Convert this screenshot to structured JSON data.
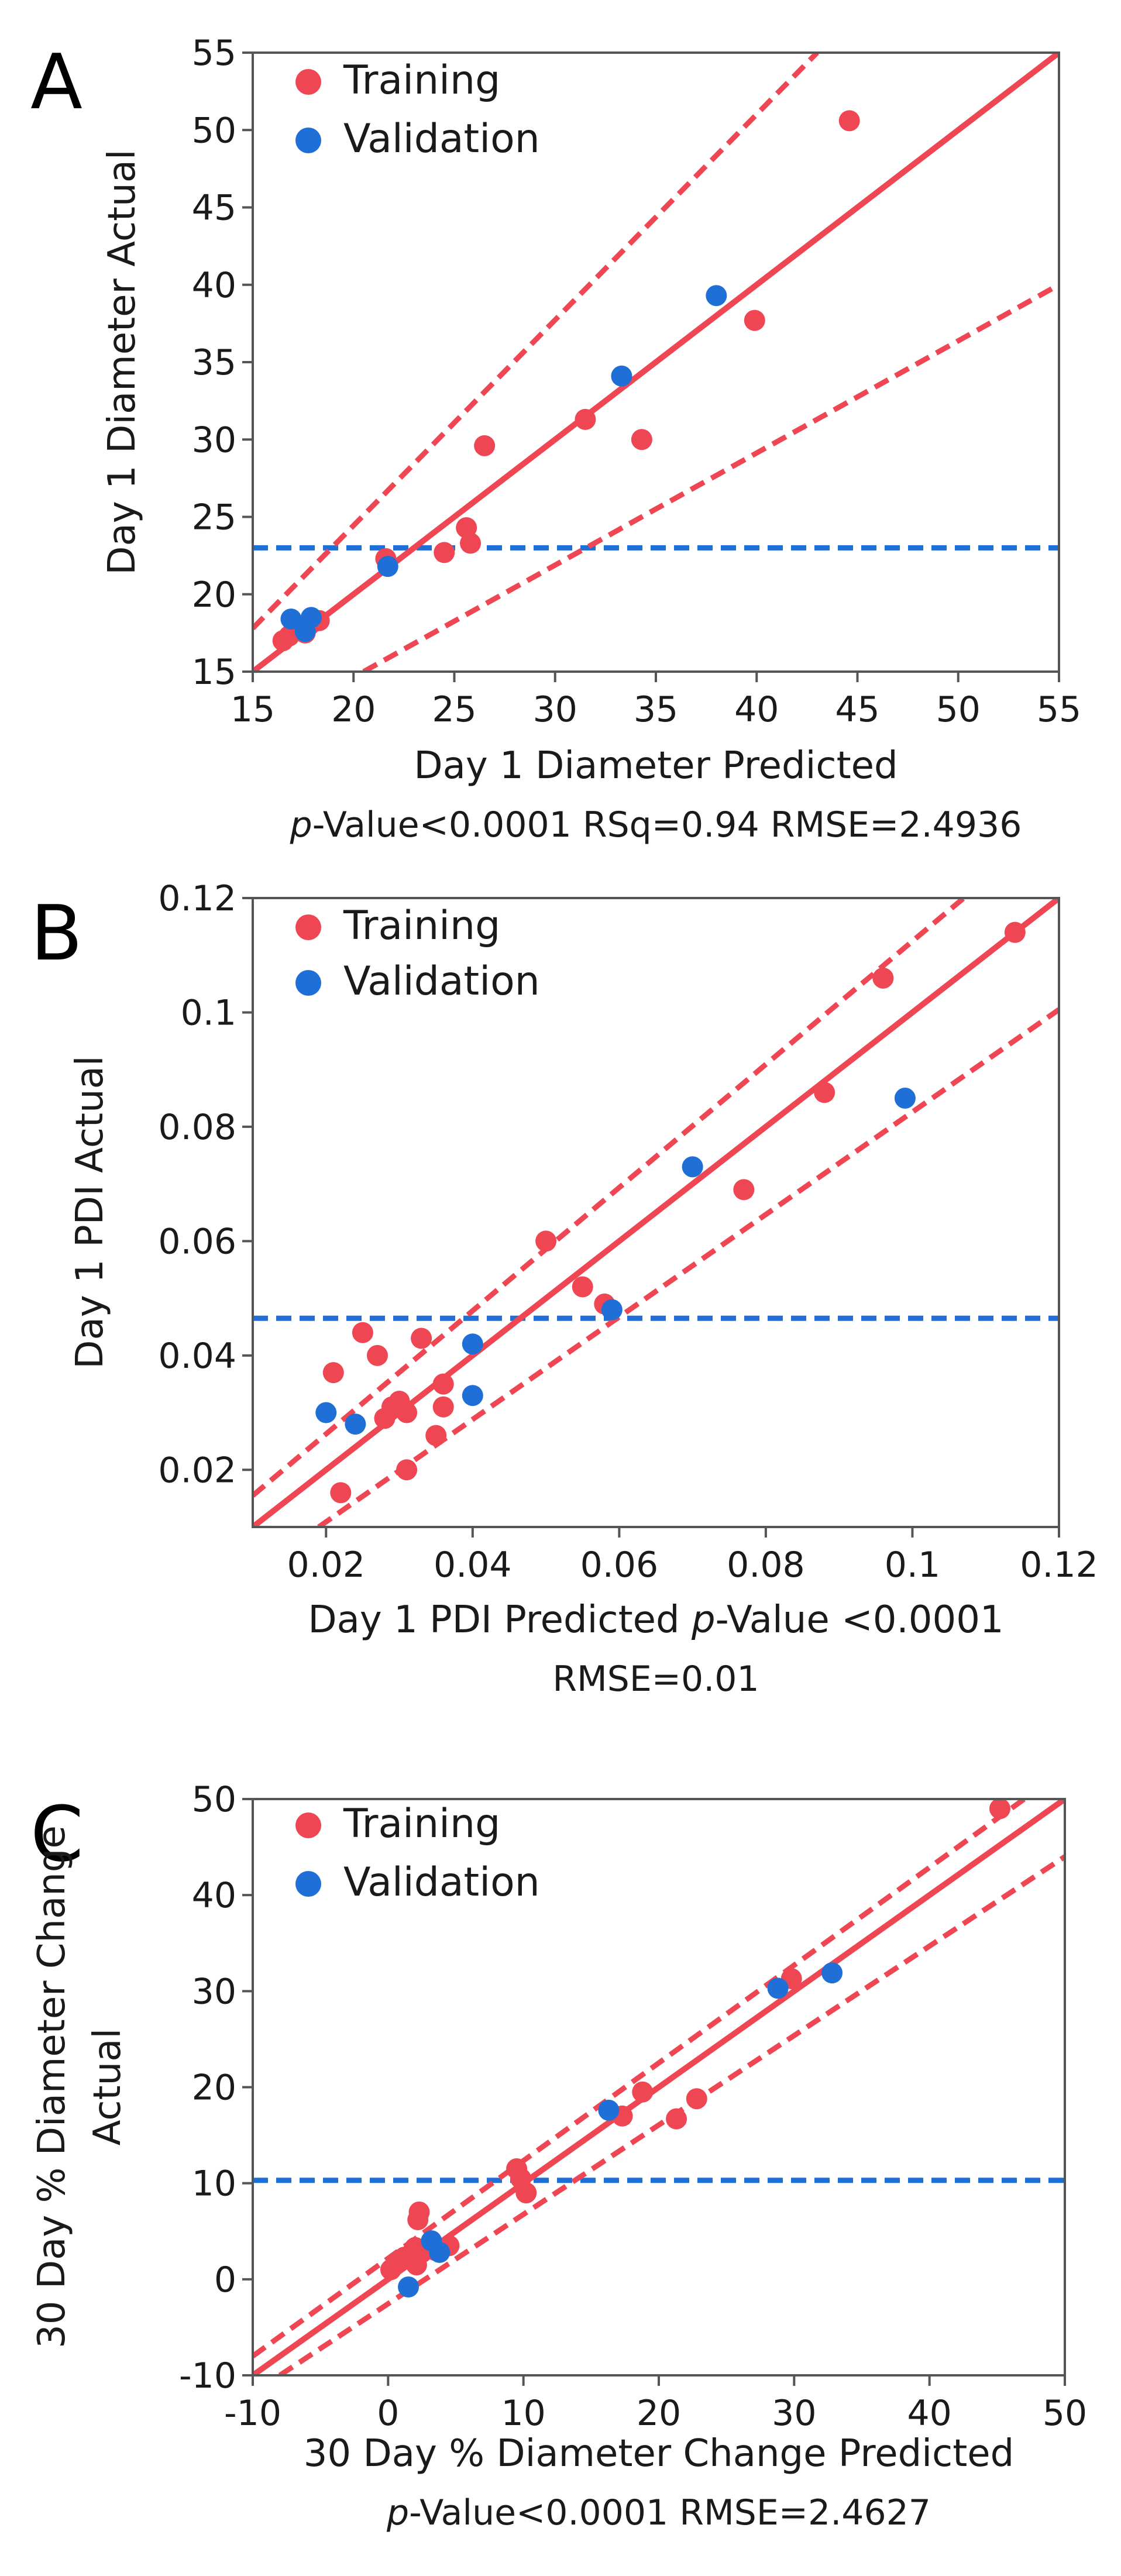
{
  "colors": {
    "training": "#ef4654",
    "validation": "#1f6fd6",
    "threshold": "#1f6fd6",
    "frame": "#555555"
  },
  "chart_data": [
    {
      "type": "scatter",
      "panel": "A",
      "xlabel": "Day 1 Diameter Predicted",
      "ylabel": "Day 1 Diameter Actual",
      "stats": {
        "p_symbol": "p",
        "rest": "-Value<0.0001 RSq=0.94 RMSE=2.4936"
      },
      "xlim": [
        15,
        55
      ],
      "ylim": [
        15,
        55
      ],
      "xticks": [
        15,
        20,
        25,
        30,
        35,
        40,
        45,
        50,
        55
      ],
      "yticks": [
        15,
        20,
        25,
        30,
        35,
        40,
        45,
        50,
        55
      ],
      "xtick_labels": [
        "15",
        "20",
        "25",
        "30",
        "35",
        "40",
        "45",
        "50",
        "55"
      ],
      "ytick_labels": [
        "15",
        "20",
        "25",
        "30",
        "35",
        "40",
        "45",
        "50",
        "55"
      ],
      "threshold_y": 23,
      "fit_line": [
        [
          15,
          15
        ],
        [
          55,
          55
        ]
      ],
      "ci_lines": [
        [
          [
            15,
            17.8
          ],
          [
            43,
            55
          ]
        ],
        [
          [
            20.5,
            15
          ],
          [
            55,
            40
          ]
        ]
      ],
      "legend": [
        "Training",
        "Validation"
      ],
      "series": [
        {
          "name": "Training",
          "points": [
            [
              16.5,
              17.0
            ],
            [
              16.8,
              17.3
            ],
            [
              17.0,
              17.6
            ],
            [
              17.3,
              17.8
            ],
            [
              17.6,
              17.5
            ],
            [
              17.8,
              18.0
            ],
            [
              18.0,
              18.2
            ],
            [
              18.3,
              18.3
            ],
            [
              21.6,
              22.3
            ],
            [
              24.5,
              22.7
            ],
            [
              25.6,
              24.3
            ],
            [
              25.8,
              23.3
            ],
            [
              26.5,
              29.6
            ],
            [
              31.5,
              31.3
            ],
            [
              34.3,
              30.0
            ],
            [
              39.9,
              37.7
            ],
            [
              44.6,
              50.6
            ]
          ]
        },
        {
          "name": "Validation",
          "points": [
            [
              16.9,
              18.4
            ],
            [
              17.6,
              17.6
            ],
            [
              17.9,
              18.5
            ],
            [
              21.7,
              21.8
            ],
            [
              33.3,
              34.1
            ],
            [
              38.0,
              39.3
            ]
          ]
        }
      ]
    },
    {
      "type": "scatter",
      "panel": "B",
      "xlabel": "Day 1 PDI Predicted",
      "ylabel": "Day 1 PDI Actual",
      "stats": {
        "p_symbol": "p",
        "rest": "-Value <0.0001",
        "line2": "RMSE=0.01"
      },
      "xlim": [
        0.01,
        0.12
      ],
      "ylim": [
        0.01,
        0.12
      ],
      "xticks": [
        0.02,
        0.04,
        0.06,
        0.08,
        0.1,
        0.12
      ],
      "yticks": [
        0.02,
        0.04,
        0.06,
        0.08,
        0.1,
        0.12
      ],
      "xtick_labels": [
        "0.02",
        "0.04",
        "0.06",
        "0.08",
        "0.1",
        "0.12"
      ],
      "ytick_labels": [
        "0.02",
        "0.04",
        "0.06",
        "0.08",
        "0.1",
        "0.12"
      ],
      "threshold_y": 0.0465,
      "fit_line": [
        [
          0.01,
          0.01
        ],
        [
          0.12,
          0.12
        ]
      ],
      "ci_lines": [
        [
          [
            0.01,
            0.0155
          ],
          [
            0.107,
            0.12
          ]
        ],
        [
          [
            0.019,
            0.01
          ],
          [
            0.12,
            0.1005
          ]
        ]
      ],
      "legend": [
        "Training",
        "Validation"
      ],
      "series": [
        {
          "name": "Training",
          "points": [
            [
              0.021,
              0.037
            ],
            [
              0.022,
              0.016
            ],
            [
              0.025,
              0.044
            ],
            [
              0.027,
              0.04
            ],
            [
              0.028,
              0.029
            ],
            [
              0.029,
              0.031
            ],
            [
              0.03,
              0.032
            ],
            [
              0.031,
              0.03
            ],
            [
              0.031,
              0.02
            ],
            [
              0.033,
              0.043
            ],
            [
              0.035,
              0.026
            ],
            [
              0.036,
              0.035
            ],
            [
              0.036,
              0.031
            ],
            [
              0.05,
              0.06
            ],
            [
              0.055,
              0.052
            ],
            [
              0.058,
              0.049
            ],
            [
              0.077,
              0.069
            ],
            [
              0.088,
              0.086
            ],
            [
              0.096,
              0.106
            ],
            [
              0.114,
              0.114
            ]
          ]
        },
        {
          "name": "Validation",
          "points": [
            [
              0.02,
              0.03
            ],
            [
              0.024,
              0.028
            ],
            [
              0.04,
              0.042
            ],
            [
              0.04,
              0.033
            ],
            [
              0.059,
              0.048
            ],
            [
              0.07,
              0.073
            ],
            [
              0.099,
              0.085
            ]
          ]
        }
      ]
    },
    {
      "type": "scatter",
      "panel": "C",
      "xlabel": "30 Day % Diameter Change Predicted",
      "ylabel": "30 Day % Diameter Change",
      "ylabel2": "Actual",
      "stats": {
        "p_symbol": "p",
        "rest": "-Value<0.0001 RMSE=2.4627"
      },
      "xlim": [
        -10,
        50
      ],
      "ylim": [
        -10,
        50
      ],
      "xticks": [
        -10,
        0,
        10,
        20,
        30,
        40,
        50
      ],
      "yticks": [
        -10,
        0,
        10,
        20,
        30,
        40,
        50
      ],
      "xtick_labels": [
        "-10",
        "0",
        "10",
        "20",
        "30",
        "40",
        "50"
      ],
      "ytick_labels": [
        "-10",
        "0",
        "10",
        "20",
        "30",
        "40",
        "50"
      ],
      "threshold_y": 10.3,
      "fit_line": [
        [
          -10,
          -10
        ],
        [
          50,
          50
        ]
      ],
      "ci_lines": [
        [
          [
            -10,
            -8.0
          ],
          [
            47,
            50
          ]
        ],
        [
          [
            -8,
            -10
          ],
          [
            50,
            44
          ]
        ]
      ],
      "legend": [
        "Training",
        "Validation"
      ],
      "series": [
        {
          "name": "Training",
          "points": [
            [
              0.2,
              1.0
            ],
            [
              0.8,
              1.8
            ],
            [
              1.2,
              2.3
            ],
            [
              1.8,
              2.8
            ],
            [
              2.0,
              3.3
            ],
            [
              2.1,
              1.5
            ],
            [
              2.2,
              6.2
            ],
            [
              2.3,
              7.0
            ],
            [
              2.5,
              2.8
            ],
            [
              3.5,
              3.0
            ],
            [
              4.5,
              3.5
            ],
            [
              9.5,
              11.5
            ],
            [
              9.8,
              10.5
            ],
            [
              10.2,
              9.0
            ],
            [
              17.3,
              17.0
            ],
            [
              18.8,
              19.5
            ],
            [
              21.3,
              16.7
            ],
            [
              22.8,
              18.8
            ],
            [
              29.8,
              31.3
            ],
            [
              45.2,
              49.0
            ]
          ]
        },
        {
          "name": "Validation",
          "points": [
            [
              1.5,
              -0.8
            ],
            [
              3.2,
              4.0
            ],
            [
              3.8,
              2.8
            ],
            [
              16.3,
              17.6
            ],
            [
              28.8,
              30.3
            ],
            [
              32.8,
              31.9
            ]
          ]
        }
      ]
    }
  ]
}
